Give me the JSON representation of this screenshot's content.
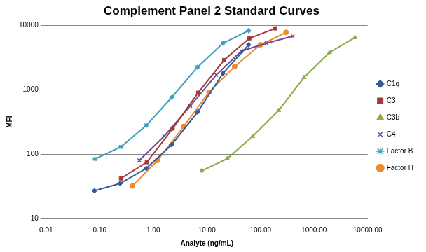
{
  "chart_data": {
    "type": "line",
    "title": "Complement Panel 2 Standard Curves",
    "x_label": "Analyte (ng/mL)",
    "y_label": "MFI",
    "log": true,
    "grid": true,
    "legend": "right",
    "xlim": [
      0.01,
      10000
    ],
    "xticks": [
      0.01,
      {
        "value": 0.1,
        "label": "0.10"
      },
      {
        "value": 1,
        "label": "1.00"
      },
      {
        "value": 10,
        "label": "10.00"
      },
      {
        "value": 100,
        "label": "100.00"
      },
      {
        "value": 1000,
        "label": "1000.00"
      },
      {
        "value": 10000,
        "label": "10000.00"
      }
    ],
    "ylim": [
      10,
      10000
    ],
    "yticks": [
      10,
      100,
      1000,
      10000
    ],
    "series": [
      {
        "name": "C1q",
        "color": "#335b96",
        "marker": "diamond",
        "x": [
          0.08,
          0.24,
          0.74,
          2.2,
          6.7,
          20,
          60
        ],
        "values": [
          27,
          35,
          60,
          140,
          450,
          1800,
          5000
        ]
      },
      {
        "name": "C3",
        "color": "#a33a36",
        "marker": "square",
        "x": [
          0.25,
          0.76,
          2.3,
          6.9,
          21,
          62,
          190
        ],
        "values": [
          42,
          75,
          250,
          900,
          2900,
          6300,
          9000
        ]
      },
      {
        "name": "C3b",
        "color": "#8aac46",
        "marker": "triangle",
        "x": [
          8,
          24,
          72,
          220,
          650,
          1950,
          5800
        ],
        "values": [
          55,
          85,
          190,
          480,
          1550,
          3800,
          6500
        ]
      },
      {
        "name": "C4",
        "color": "#6e4e92",
        "marker": "x",
        "x": [
          0.55,
          1.6,
          4.9,
          15,
          44,
          130,
          400
        ],
        "values": [
          80,
          190,
          560,
          1700,
          4000,
          5300,
          6800
        ]
      },
      {
        "name": "Factor B",
        "color": "#3a9fbf",
        "marker": "star",
        "x": [
          0.082,
          0.25,
          0.74,
          2.2,
          6.7,
          20,
          60
        ],
        "values": [
          84,
          130,
          280,
          760,
          2250,
          5300,
          8300
        ]
      },
      {
        "name": "Factor H",
        "color": "#f08a30",
        "marker": "circle",
        "x": [
          0.41,
          1.2,
          3.7,
          11,
          33,
          100,
          300
        ],
        "values": [
          32,
          80,
          270,
          920,
          2300,
          5000,
          7800
        ]
      }
    ]
  }
}
